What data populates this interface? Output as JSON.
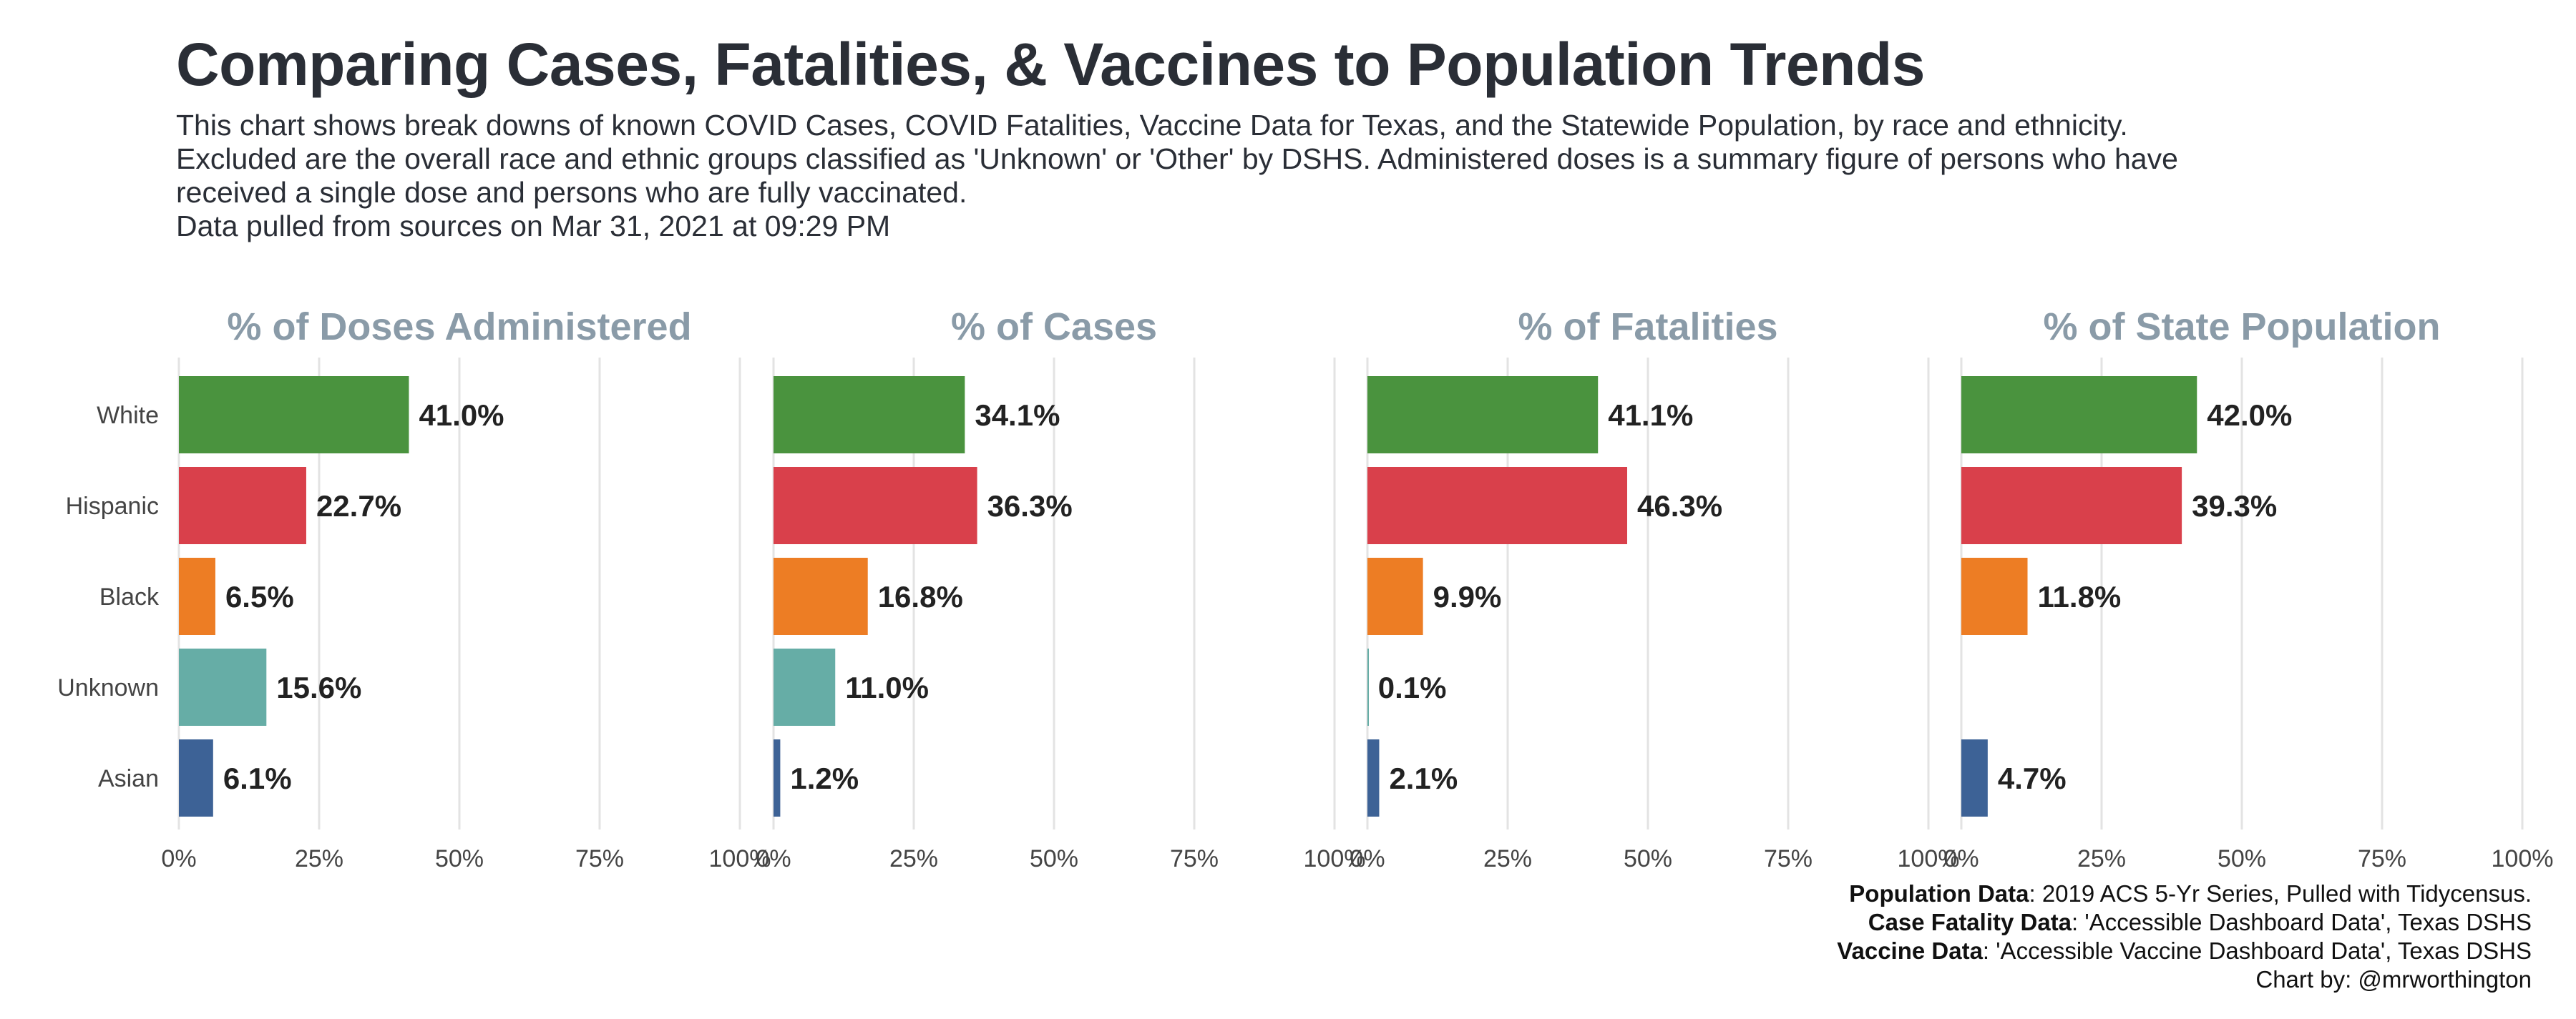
{
  "title": "Comparing Cases, Fatalities, & Vaccines to Population Trends",
  "subtitle_lines": [
    "This chart shows break downs of known COVID Cases, COVID Fatalities, Vaccine Data for Texas, and the Statewide Population, by race and ethnicity.",
    "Excluded are the overall race and ethnic groups classified as 'Unknown' or 'Other' by DSHS. Administered doses is a summary figure of persons who have",
    "received a single dose and persons who are fully vaccinated.",
    "Data pulled from sources on Mar 31, 2021 at 09:29 PM"
  ],
  "caption": {
    "population_label": "Population Data",
    "population_text": ": 2019 ACS 5-Yr Series, Pulled with Tidycensus.",
    "case_label": "Case Fatality Data",
    "case_text": ": 'Accessible Dashboard Data', Texas DSHS",
    "vaccine_label": "Vaccine Data",
    "vaccine_text": ": 'Accessible Vaccine Dashboard Data', Texas DSHS",
    "credit": "Chart by: @mrworthington"
  },
  "colors": {
    "White": "#4a933e",
    "Hispanic": "#d9404b",
    "Black": "#ed7d24",
    "Unknown": "#66ada6",
    "Asian": "#3d6296",
    "panel_title": "#8a9ba8",
    "grid": "#e3e3e3"
  },
  "chart_data": [
    {
      "type": "bar",
      "title": "% of Doses Administered",
      "categories": [
        "White",
        "Hispanic",
        "Black",
        "Unknown",
        "Asian"
      ],
      "values": [
        41.0,
        22.7,
        6.5,
        15.6,
        6.1
      ],
      "labels": [
        "41.0%",
        "22.7%",
        "6.5%",
        "15.6%",
        "6.1%"
      ],
      "xlim": [
        0,
        100
      ],
      "ticks": [
        "0%",
        "25%",
        "50%",
        "75%",
        "100%"
      ]
    },
    {
      "type": "bar",
      "title": "% of Cases",
      "categories": [
        "White",
        "Hispanic",
        "Black",
        "Unknown",
        "Asian"
      ],
      "values": [
        34.1,
        36.3,
        16.8,
        11.0,
        1.2
      ],
      "labels": [
        "34.1%",
        "36.3%",
        "16.8%",
        "11.0%",
        "1.2%"
      ],
      "xlim": [
        0,
        100
      ],
      "ticks": [
        "0%",
        "25%",
        "50%",
        "75%",
        "100%"
      ]
    },
    {
      "type": "bar",
      "title": "% of Fatalities",
      "categories": [
        "White",
        "Hispanic",
        "Black",
        "Unknown",
        "Asian"
      ],
      "values": [
        41.1,
        46.3,
        9.9,
        0.1,
        2.1
      ],
      "labels": [
        "41.1%",
        "46.3%",
        "9.9%",
        "0.1%",
        "2.1%"
      ],
      "xlim": [
        0,
        100
      ],
      "ticks": [
        "0%",
        "25%",
        "50%",
        "75%",
        "100%"
      ]
    },
    {
      "type": "bar",
      "title": "% of State Population",
      "categories": [
        "White",
        "Hispanic",
        "Black",
        "Unknown",
        "Asian"
      ],
      "values": [
        42.0,
        39.3,
        11.8,
        0,
        4.7
      ],
      "labels": [
        "42.0%",
        "39.3%",
        "11.8%",
        "",
        "4.7%"
      ],
      "xlim": [
        0,
        100
      ],
      "ticks": [
        "0%",
        "25%",
        "50%",
        "75%",
        "100%"
      ]
    }
  ]
}
